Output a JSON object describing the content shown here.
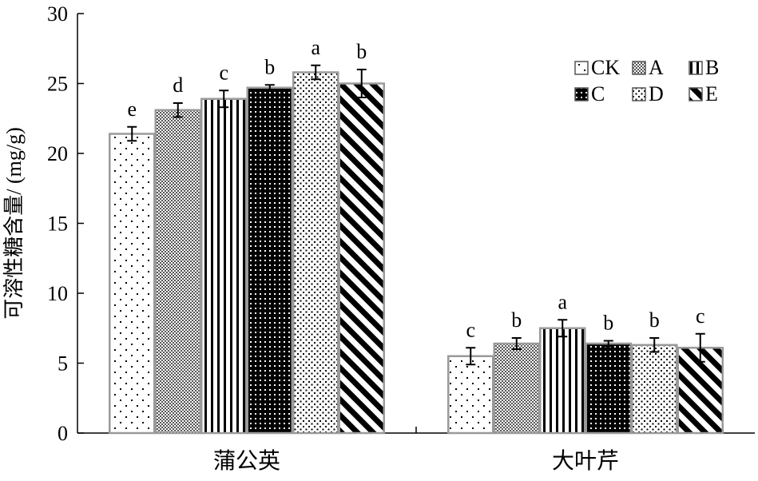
{
  "chart_data": {
    "type": "bar",
    "title": "",
    "xlabel": "",
    "ylabel": "可溶性糖含量/ (mg/g)",
    "ylim": [
      0,
      30
    ],
    "yticks": [
      0,
      5,
      10,
      15,
      20,
      25,
      30
    ],
    "grid": false,
    "legend_position": "top-right",
    "categories": [
      "蒲公英",
      "大叶芹"
    ],
    "series": [
      {
        "name": "CK",
        "pattern": "sparse-dots",
        "values": [
          21.4,
          5.5
        ],
        "errors": [
          0.5,
          0.6
        ],
        "labels": [
          "e",
          "c"
        ]
      },
      {
        "name": "A",
        "pattern": "fine-check",
        "values": [
          23.1,
          6.4
        ],
        "errors": [
          0.5,
          0.4
        ],
        "labels": [
          "d",
          "b"
        ]
      },
      {
        "name": "B",
        "pattern": "vertical-stripes",
        "values": [
          23.9,
          7.5
        ],
        "errors": [
          0.6,
          0.6
        ],
        "labels": [
          "c",
          "a"
        ]
      },
      {
        "name": "C",
        "pattern": "dense-dots",
        "values": [
          24.7,
          6.4
        ],
        "errors": [
          0.2,
          0.2
        ],
        "labels": [
          "b",
          "b"
        ]
      },
      {
        "name": "D",
        "pattern": "medium-dots",
        "values": [
          25.8,
          6.3
        ],
        "errors": [
          0.5,
          0.5
        ],
        "labels": [
          "a",
          "b"
        ]
      },
      {
        "name": "E",
        "pattern": "diagonal-stripes",
        "values": [
          25.0,
          6.1
        ],
        "errors": [
          1.0,
          1.0
        ],
        "labels": [
          "b",
          "c"
        ]
      }
    ]
  }
}
